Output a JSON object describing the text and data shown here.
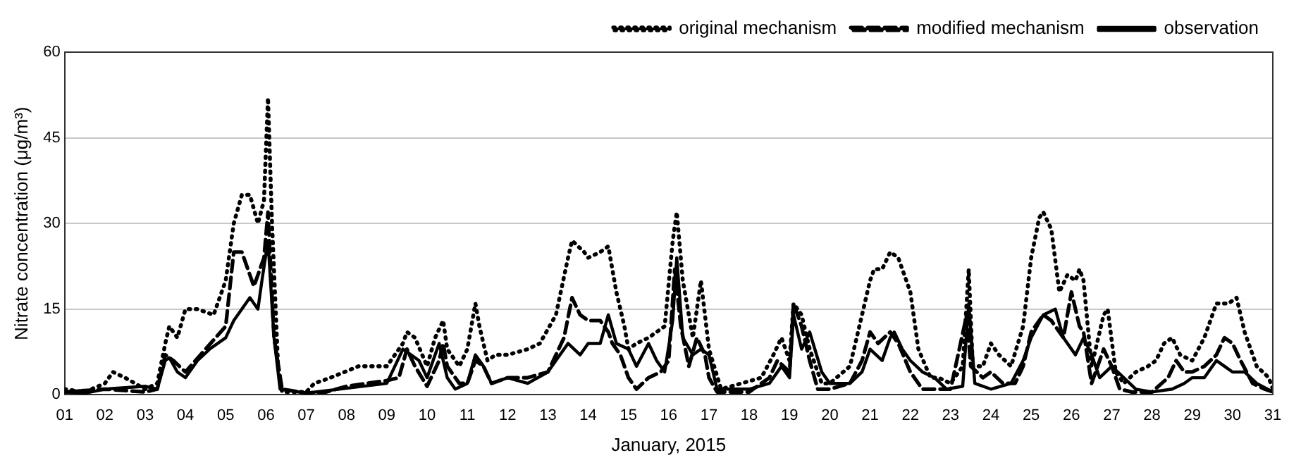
{
  "chart_data": {
    "type": "line",
    "xlabel": "January, 2015",
    "ylabel": "Nitrate concentration (μg/m³)",
    "xlim": [
      1,
      31
    ],
    "ylim": [
      0,
      60
    ],
    "xticks": [
      {
        "value": 1,
        "label": "01"
      },
      {
        "value": 2,
        "label": "02"
      },
      {
        "value": 3,
        "label": "03"
      },
      {
        "value": 4,
        "label": "04"
      },
      {
        "value": 5,
        "label": "05"
      },
      {
        "value": 6,
        "label": "06"
      },
      {
        "value": 7,
        "label": "07"
      },
      {
        "value": 8,
        "label": "08"
      },
      {
        "value": 9,
        "label": "09"
      },
      10,
      11,
      12,
      13,
      14,
      15,
      16,
      17,
      18,
      19,
      20,
      21,
      22,
      23,
      24,
      25,
      26,
      27,
      28,
      29,
      30,
      31
    ],
    "yticks": [
      0,
      15,
      30,
      45,
      60
    ],
    "grid": "y",
    "legend": "top right",
    "marker": "none",
    "series": [
      {
        "name": "original mechanism",
        "color": "#000000",
        "line_style": "dotted",
        "x": [
          1,
          1.5,
          2,
          2.2,
          2.5,
          3,
          3.3,
          3.5,
          3.6,
          3.8,
          4,
          4.3,
          4.7,
          5,
          5.2,
          5.4,
          5.6,
          5.8,
          5.95,
          6.05,
          6.15,
          6.3,
          6.4,
          7,
          7.2,
          7.6,
          8.3,
          8.6,
          9,
          9.4,
          9.5,
          9.7,
          10,
          10.2,
          10.4,
          10.5,
          10.8,
          11,
          11.2,
          11.3,
          11.5,
          11.7,
          12,
          12.5,
          12.8,
          13.2,
          13.5,
          13.6,
          13.9,
          14,
          14.3,
          14.5,
          14.7,
          14.9,
          15,
          15.2,
          15.5,
          15.9,
          16.1,
          16.2,
          16.35,
          16.6,
          16.8,
          16.9,
          17,
          17.3,
          17.8,
          18.3,
          18.6,
          18.8,
          19,
          19.1,
          19.3,
          19.5,
          19.8,
          20,
          20.5,
          20.8,
          21,
          21.1,
          21.3,
          21.5,
          21.7,
          22,
          22.2,
          22.5,
          22.7,
          23,
          23.3,
          23.45,
          23.55,
          23.8,
          24,
          24.2,
          24.5,
          24.8,
          25,
          25.2,
          25.3,
          25.5,
          25.7,
          25.9,
          26.1,
          26.2,
          26.3,
          26.5,
          26.8,
          26.9,
          27.1,
          27.3,
          27.6,
          27.9,
          28.1,
          28.3,
          28.5,
          28.7,
          29,
          29.3,
          29.6,
          29.9,
          30.1,
          30.3,
          30.6,
          30.9,
          31
        ],
        "values": [
          1,
          0.5,
          2,
          4,
          3,
          1,
          2,
          9,
          12,
          10,
          15,
          15,
          14,
          20,
          30,
          35,
          35,
          30,
          34,
          52,
          30,
          5,
          0.5,
          0.5,
          2,
          3,
          5,
          5,
          5,
          9,
          11,
          10,
          5,
          10,
          13,
          8,
          5,
          8,
          16,
          12,
          6,
          7,
          7,
          8,
          9,
          14,
          24,
          27,
          25,
          24,
          25,
          26,
          18,
          12,
          8,
          9,
          10,
          12,
          27,
          32,
          20,
          10,
          20,
          14,
          8,
          1,
          2,
          3,
          7,
          10,
          6,
          16,
          14,
          8,
          2,
          2,
          5,
          14,
          20,
          22,
          22,
          25,
          24,
          18,
          8,
          3,
          3,
          2,
          5,
          22,
          5,
          5,
          9,
          7,
          5,
          12,
          24,
          31,
          32,
          29,
          18,
          21,
          20,
          22,
          20,
          5,
          14,
          15,
          4,
          2,
          4,
          5,
          6,
          9,
          10,
          7,
          6,
          10,
          16,
          16,
          17,
          11,
          5,
          3,
          1
        ]
      },
      {
        "name": "modified mechanism",
        "color": "#000000",
        "line_style": "dashed",
        "x": [
          1,
          2,
          3,
          3.3,
          3.5,
          3.7,
          4,
          4.5,
          5,
          5.2,
          5.4,
          5.7,
          5.95,
          6.05,
          6.2,
          6.4,
          7,
          7.5,
          8,
          8.5,
          9,
          9.3,
          9.5,
          9.7,
          10,
          10.3,
          10.4,
          10.5,
          10.8,
          11,
          11.2,
          11.4,
          11.6,
          12,
          12.5,
          13,
          13.4,
          13.6,
          13.8,
          14,
          14.3,
          14.5,
          14.6,
          14.8,
          15,
          15.2,
          15.5,
          15.8,
          16,
          16.15,
          16.3,
          16.5,
          16.7,
          16.9,
          17,
          17.2,
          18,
          18.5,
          18.7,
          19,
          19.1,
          19.3,
          19.5,
          19.7,
          20,
          20.5,
          20.8,
          21,
          21.2,
          21.5,
          21.7,
          22,
          22.3,
          22.7,
          23,
          23.4,
          23.5,
          23.8,
          24,
          24.3,
          24.6,
          24.8,
          25,
          25.3,
          25.5,
          25.8,
          26,
          26.2,
          26.3,
          26.5,
          26.8,
          27,
          27.2,
          27.5,
          28,
          28.4,
          28.6,
          28.8,
          29,
          29.3,
          29.6,
          29.8,
          30,
          30.2,
          30.5,
          30.8,
          31
        ],
        "values": [
          0.5,
          1,
          0.5,
          1,
          7,
          6,
          4,
          8,
          12,
          25,
          25,
          19,
          24,
          32,
          10,
          1,
          0.3,
          0.5,
          1.5,
          2,
          2.5,
          3,
          8,
          5,
          1.5,
          6,
          9,
          5,
          2,
          2,
          6,
          5,
          2,
          3,
          3,
          4,
          10,
          17,
          14,
          13,
          13,
          11,
          9,
          7,
          3,
          1,
          3,
          4,
          6,
          22,
          12,
          5,
          10,
          7,
          3,
          0.5,
          0.5,
          3,
          6,
          4,
          16,
          12,
          6,
          1,
          1,
          2,
          6,
          11,
          9,
          11,
          9,
          4,
          1,
          1,
          1,
          14,
          5,
          3,
          4,
          2,
          2,
          5,
          11,
          14,
          13,
          10,
          18,
          12,
          11,
          2,
          8,
          5,
          1,
          0.5,
          0.5,
          3,
          6,
          4,
          4,
          5,
          7,
          10,
          9,
          6,
          2,
          1,
          0.5
        ]
      },
      {
        "name": "observation",
        "color": "#000000",
        "line_style": "solid",
        "x": [
          1,
          1.5,
          2,
          3,
          3.3,
          3.5,
          3.6,
          3.8,
          4,
          4.3,
          4.6,
          5,
          5.2,
          5.4,
          5.6,
          5.8,
          5.9,
          6.05,
          6.2,
          6.35,
          7,
          9,
          9.4,
          9.6,
          9.8,
          10,
          10.3,
          10.5,
          10.7,
          11,
          11.2,
          11.4,
          11.6,
          12,
          12.5,
          13,
          13.2,
          13.5,
          13.8,
          14,
          14.3,
          14.5,
          14.7,
          15,
          15.2,
          15.5,
          15.7,
          15.9,
          16.1,
          16.2,
          16.35,
          16.6,
          16.8,
          17,
          17.2,
          17.5,
          18,
          18.5,
          18.8,
          19,
          19.1,
          19.3,
          19.5,
          19.8,
          20,
          20.5,
          20.8,
          21,
          21.3,
          21.5,
          21.6,
          21.8,
          22,
          22.3,
          22.6,
          22.9,
          23.3,
          23.45,
          23.6,
          24,
          24.5,
          24.8,
          25,
          25.3,
          25.6,
          25.8,
          26.1,
          26.3,
          26.5,
          26.7,
          27,
          27.3,
          27.6,
          28,
          28.5,
          28.8,
          29,
          29.3,
          29.6,
          29.8,
          30,
          30.3,
          30.6,
          31
        ],
        "values": [
          0.5,
          0.3,
          1,
          1.5,
          1,
          6,
          6.5,
          4,
          3,
          6,
          8,
          10,
          13,
          15,
          17,
          15,
          20,
          27,
          10,
          1,
          0.3,
          2,
          8,
          7,
          6,
          3,
          9,
          3,
          1,
          2,
          7,
          5,
          2,
          3,
          2,
          4,
          6,
          9,
          7,
          9,
          9,
          14,
          9,
          8,
          5,
          9,
          6,
          4,
          13,
          24,
          10,
          7,
          8,
          7,
          1,
          1,
          1,
          2,
          5,
          3,
          14,
          8,
          11,
          4,
          2,
          2,
          4,
          8,
          6,
          10,
          11,
          8,
          6,
          4,
          3,
          1,
          1.5,
          16,
          2,
          1,
          2,
          6,
          10,
          14,
          15,
          10,
          7,
          10,
          7,
          3,
          5,
          3,
          1,
          0.5,
          1,
          2,
          3,
          3,
          6,
          5,
          4,
          4,
          2,
          0.5
        ]
      }
    ]
  }
}
